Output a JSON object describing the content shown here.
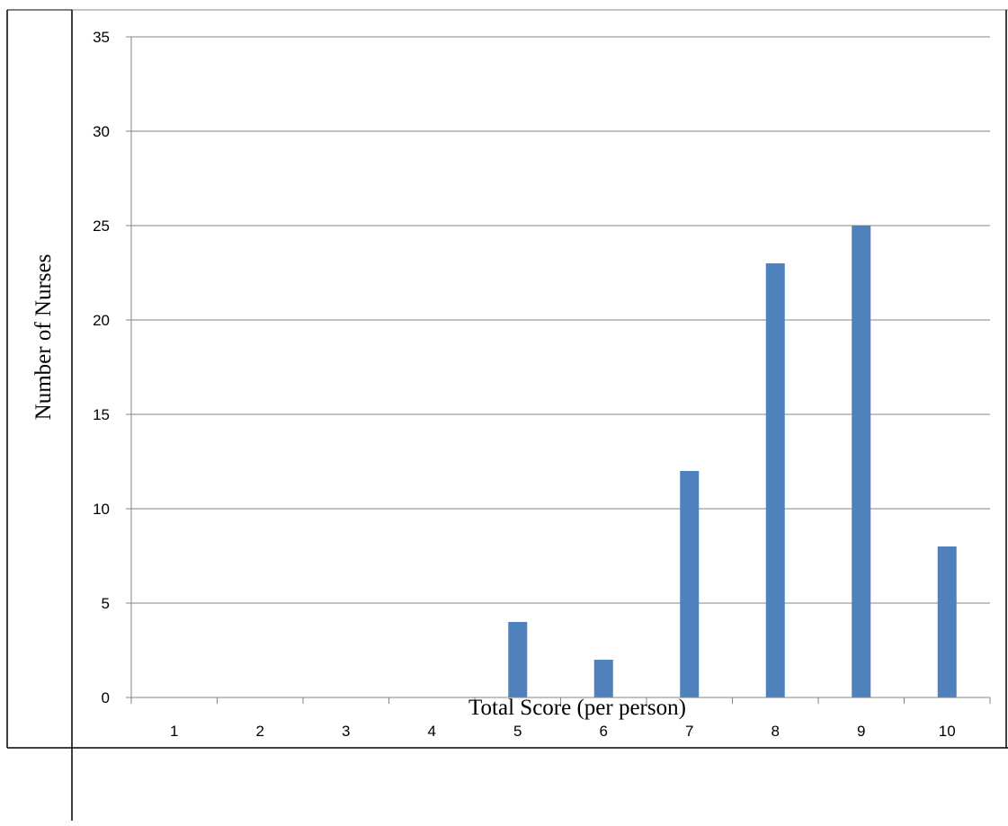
{
  "chart_data": {
    "type": "bar",
    "title": "",
    "xlabel": "Total Score (per person)",
    "ylabel": "Number of Nurses",
    "categories": [
      "1",
      "2",
      "3",
      "4",
      "5",
      "6",
      "7",
      "8",
      "9",
      "10"
    ],
    "series": [
      {
        "values": [
          0,
          0,
          0,
          0,
          4,
          2,
          12,
          23,
          25,
          8
        ],
        "color": "#4f81bd"
      }
    ],
    "ylim": [
      0,
      35
    ],
    "yticks": [
      "0",
      "5",
      "10",
      "15",
      "20",
      "25",
      "30",
      "35"
    ],
    "grid": true,
    "legend": "none"
  }
}
